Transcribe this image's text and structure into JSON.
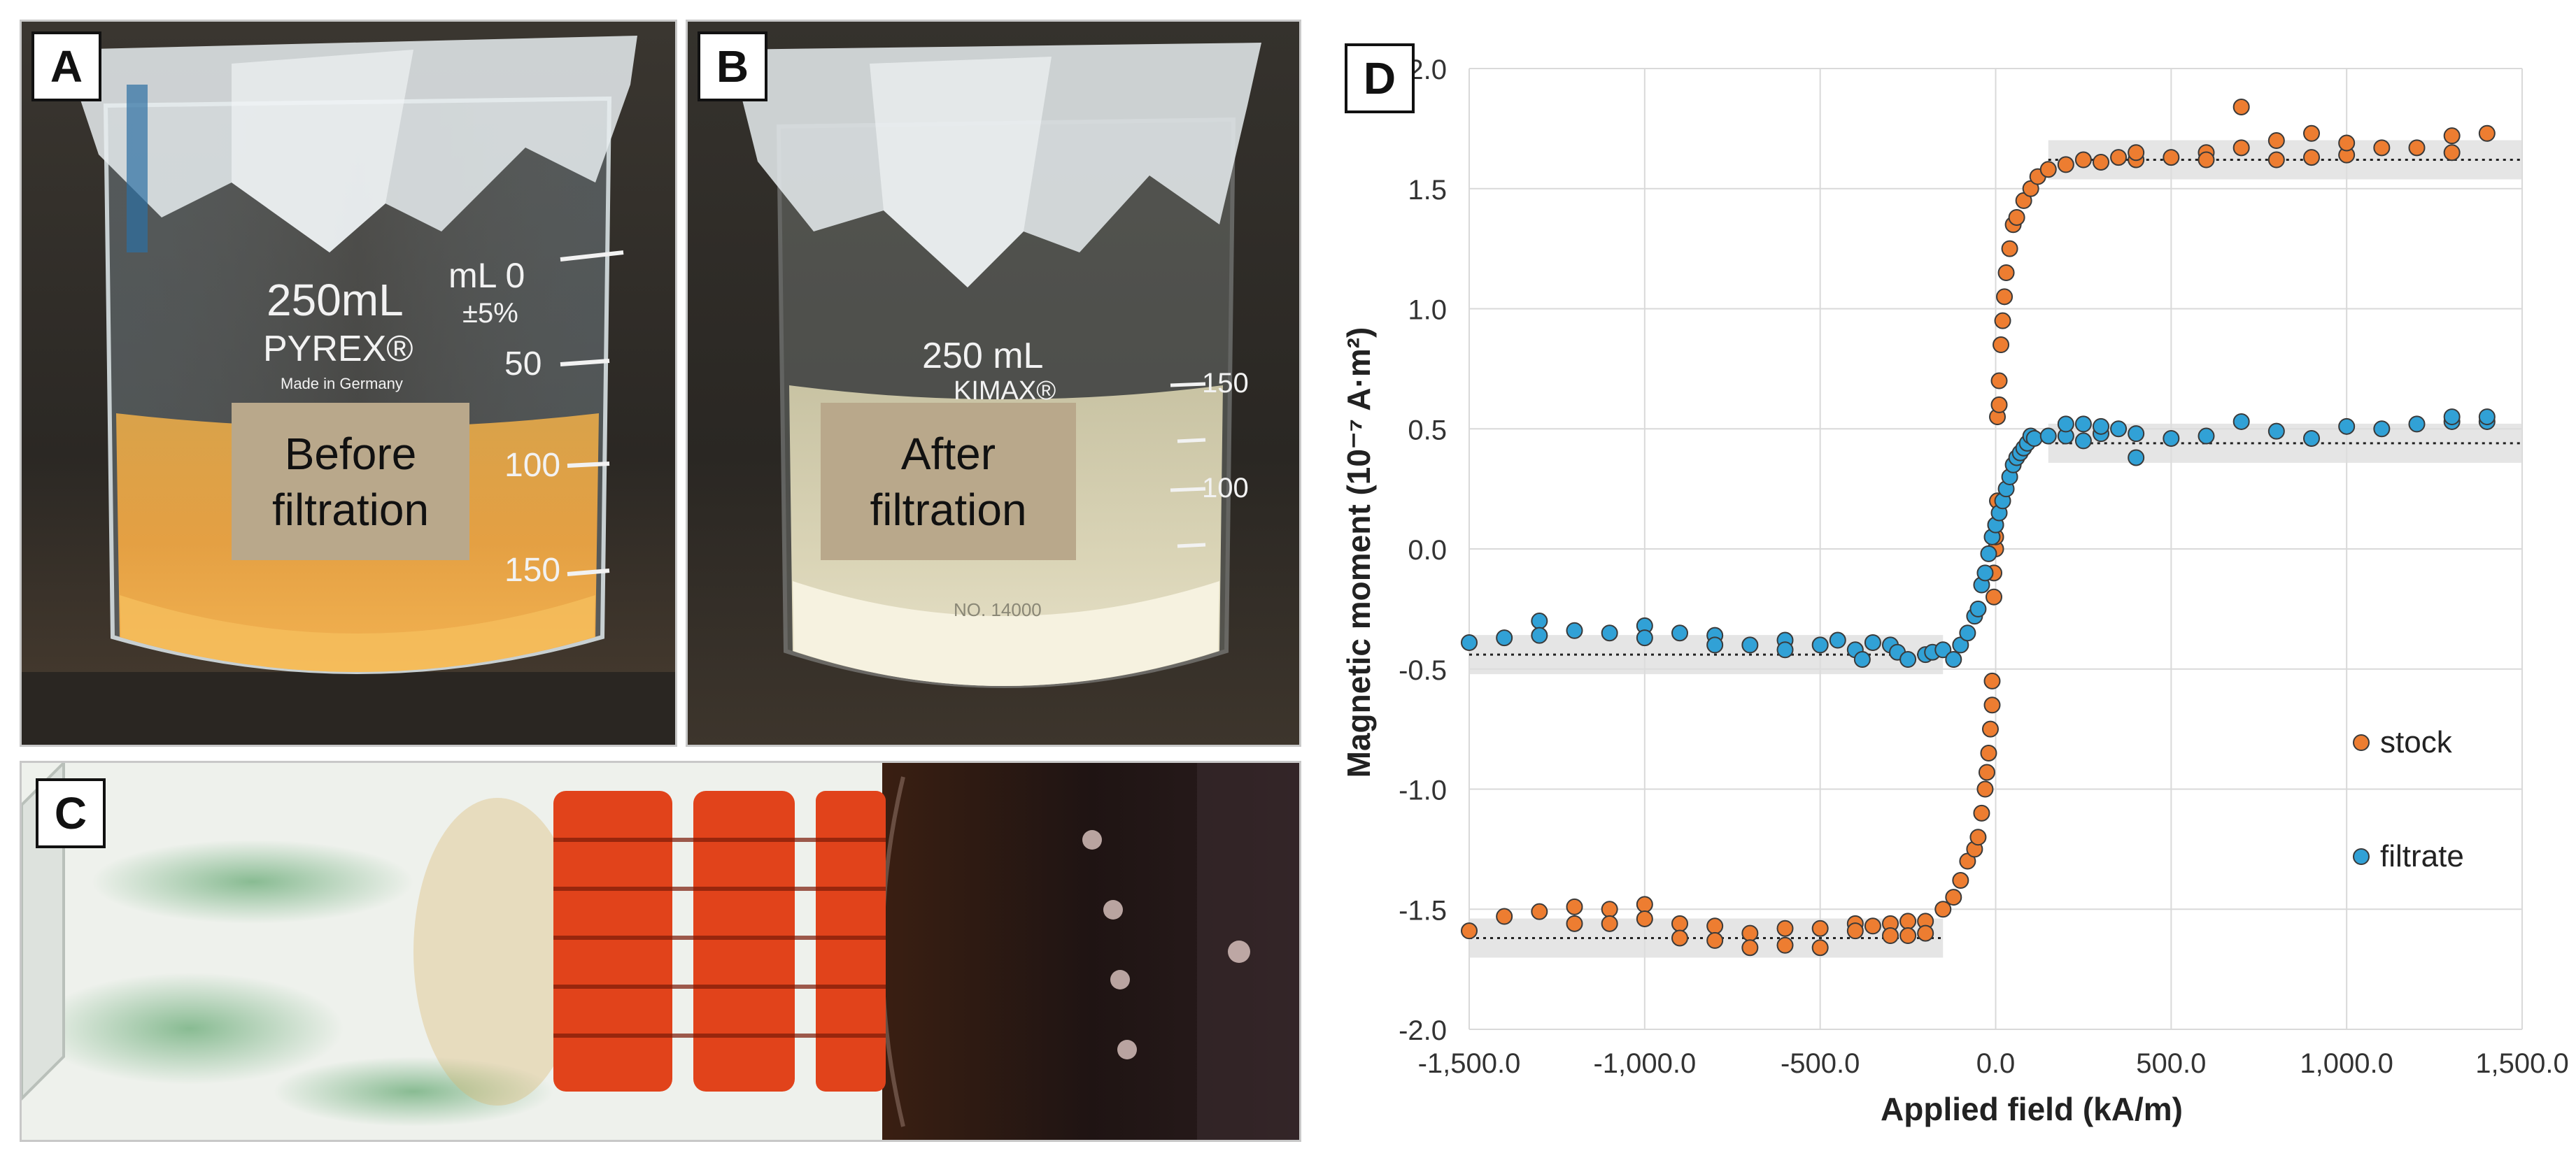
{
  "panels": {
    "a": {
      "letter": "A",
      "caption_line1": "Before",
      "caption_line2": "filtration",
      "beaker_text": [
        "250mL",
        "PYREX®",
        "Made in Germany",
        "mL 0",
        "±5%",
        "50",
        "100",
        "150"
      ]
    },
    "b": {
      "letter": "B",
      "caption_line1": "After",
      "caption_line2": "filtration",
      "beaker_text": [
        "250 mL",
        "KIMAX®",
        "NO. 14000",
        "150",
        "100"
      ]
    },
    "c": {
      "letter": "C"
    },
    "d": {
      "letter": "D"
    }
  },
  "colors": {
    "stock": "#ed7d31",
    "filtrate": "#31a1d6",
    "liquid_before": "#e4a043",
    "liquid_after": "#e9e2c4",
    "iron_oxide": "#e1431b"
  },
  "chart_data": {
    "type": "scatter",
    "xlabel": "Applied field (kA/m)",
    "ylabel": "Magnetic moment (10⁻⁷ A·m²)",
    "xlim": [
      -1500,
      1500
    ],
    "ylim": [
      -2.0,
      2.0
    ],
    "xticks": [
      "-1,500.0",
      "-1,000.0",
      "-500.0",
      "0.0",
      "500.0",
      "1,000.0",
      "1,500.0"
    ],
    "yticks": [
      "2.0",
      "1.5",
      "1.0",
      "0.5",
      "0.0",
      "-0.5",
      "-1.0",
      "-1.5",
      "-2.0"
    ],
    "grid": true,
    "legend_position": "right",
    "saturation_lines": [
      {
        "series": "stock",
        "x": [
          -1500,
          -150
        ],
        "y": -1.62
      },
      {
        "series": "stock",
        "x": [
          150,
          1500
        ],
        "y": 1.62
      },
      {
        "series": "filtrate",
        "x": [
          -1500,
          -150
        ],
        "y": -0.44
      },
      {
        "series": "filtrate",
        "x": [
          150,
          1500
        ],
        "y": 0.44
      }
    ],
    "series": [
      {
        "name": "stock",
        "x": [
          -1500,
          -1400,
          -1300,
          -1200,
          -1200,
          -1100,
          -1100,
          -1000,
          -1000,
          -900,
          -900,
          -800,
          -800,
          -700,
          -700,
          -600,
          -600,
          -500,
          -500,
          -400,
          -400,
          -350,
          -300,
          -300,
          -250,
          -250,
          -200,
          -200,
          -150,
          -120,
          -100,
          -80,
          -60,
          -50,
          -40,
          -30,
          -25,
          -20,
          -15,
          -10,
          -10,
          -5,
          -5,
          0,
          0,
          0,
          5,
          5,
          10,
          10,
          15,
          20,
          25,
          30,
          40,
          50,
          60,
          80,
          100,
          120,
          150,
          200,
          250,
          300,
          350,
          400,
          400,
          500,
          600,
          600,
          700,
          700,
          800,
          800,
          900,
          900,
          1000,
          1000,
          1100,
          1200,
          1300,
          1300,
          1400
        ],
        "y": [
          -1.59,
          -1.53,
          -1.51,
          -1.49,
          -1.56,
          -1.5,
          -1.56,
          -1.48,
          -1.54,
          -1.56,
          -1.62,
          -1.57,
          -1.63,
          -1.6,
          -1.66,
          -1.58,
          -1.65,
          -1.58,
          -1.66,
          -1.56,
          -1.59,
          -1.57,
          -1.56,
          -1.61,
          -1.55,
          -1.61,
          -1.55,
          -1.6,
          -1.5,
          -1.45,
          -1.38,
          -1.3,
          -1.25,
          -1.2,
          -1.1,
          -1.0,
          -0.93,
          -0.85,
          -0.75,
          -0.65,
          -0.55,
          -0.2,
          -0.1,
          0.0,
          0.05,
          0.1,
          0.2,
          0.55,
          0.6,
          0.7,
          0.85,
          0.95,
          1.05,
          1.15,
          1.25,
          1.35,
          1.38,
          1.45,
          1.5,
          1.55,
          1.58,
          1.6,
          1.62,
          1.61,
          1.63,
          1.62,
          1.65,
          1.63,
          1.65,
          1.62,
          1.84,
          1.67,
          1.62,
          1.7,
          1.73,
          1.63,
          1.64,
          1.69,
          1.67,
          1.67,
          1.65,
          1.72,
          1.73
        ]
      },
      {
        "name": "filtrate",
        "x": [
          -1500,
          -1400,
          -1300,
          -1300,
          -1200,
          -1100,
          -1000,
          -1000,
          -900,
          -800,
          -800,
          -700,
          -600,
          -600,
          -500,
          -450,
          -400,
          -380,
          -350,
          -300,
          -280,
          -250,
          -200,
          -180,
          -150,
          -120,
          -100,
          -80,
          -60,
          -50,
          -40,
          -30,
          -20,
          -10,
          0,
          10,
          20,
          30,
          40,
          50,
          60,
          70,
          80,
          90,
          100,
          110,
          150,
          200,
          200,
          250,
          250,
          300,
          300,
          350,
          400,
          400,
          500,
          600,
          700,
          800,
          900,
          1000,
          1100,
          1200,
          1300,
          1300,
          1400,
          1400
        ],
        "y": [
          -0.39,
          -0.37,
          -0.3,
          -0.36,
          -0.34,
          -0.35,
          -0.32,
          -0.37,
          -0.35,
          -0.36,
          -0.4,
          -0.4,
          -0.38,
          -0.42,
          -0.4,
          -0.38,
          -0.42,
          -0.46,
          -0.39,
          -0.4,
          -0.43,
          -0.46,
          -0.44,
          -0.43,
          -0.42,
          -0.46,
          -0.4,
          -0.35,
          -0.28,
          -0.25,
          -0.15,
          -0.1,
          -0.02,
          0.05,
          0.1,
          0.15,
          0.2,
          0.25,
          0.3,
          0.35,
          0.38,
          0.4,
          0.42,
          0.44,
          0.47,
          0.46,
          0.47,
          0.47,
          0.52,
          0.45,
          0.52,
          0.48,
          0.51,
          0.5,
          0.38,
          0.48,
          0.46,
          0.47,
          0.53,
          0.49,
          0.46,
          0.51,
          0.5,
          0.52,
          0.53,
          0.55,
          0.53,
          0.55
        ]
      }
    ]
  }
}
